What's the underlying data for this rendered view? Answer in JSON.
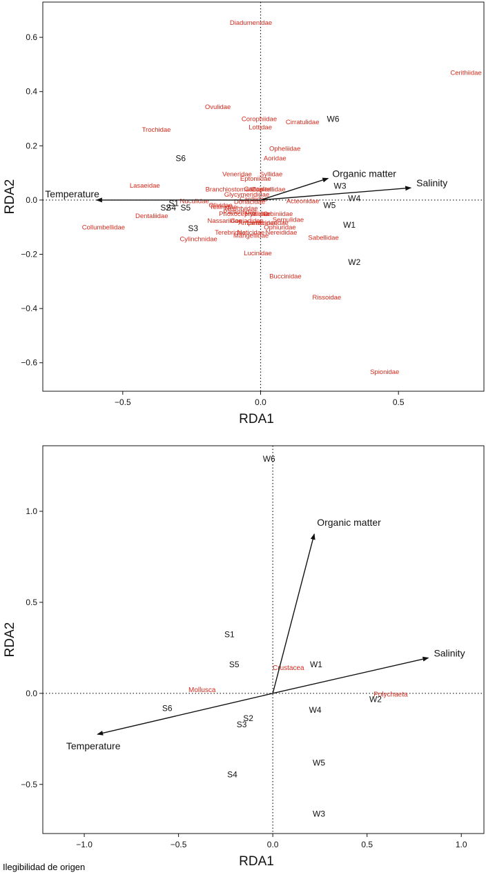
{
  "footer_text": "Ilegibilidad de origen",
  "colors": {
    "site": "#111111",
    "taxon": "#d42a1c",
    "axis": "#111111",
    "arrow": "#111111"
  },
  "chart_data": [
    {
      "type": "scatter",
      "title": "",
      "xlabel": "RDA1",
      "ylabel": "RDA2",
      "xlim": [
        -0.79,
        0.81
      ],
      "ylim": [
        -0.705,
        0.73
      ],
      "xticks": [
        -0.5,
        0.0,
        0.5
      ],
      "xtick_labels": [
        "−0.5",
        "0.0",
        "0.5"
      ],
      "yticks": [
        -0.6,
        -0.4,
        -0.2,
        0.0,
        0.2,
        0.4,
        0.6
      ],
      "ytick_labels": [
        "−0.6",
        "−0.4",
        "−0.2",
        "0.0",
        "0.2",
        "0.4",
        "0.6"
      ],
      "arrows": [
        {
          "label": "Temperature",
          "x": -0.595,
          "y": 0.0
        },
        {
          "label": "Organic matter",
          "x": 0.245,
          "y": 0.08
        },
        {
          "label": "Salinity",
          "x": 0.545,
          "y": 0.045
        }
      ],
      "sites": [
        {
          "label": "S6",
          "x": -0.29,
          "y": 0.155
        },
        {
          "label": "S1",
          "x": -0.315,
          "y": -0.01
        },
        {
          "label": "S2",
          "x": -0.345,
          "y": -0.027
        },
        {
          "label": "S4",
          "x": -0.325,
          "y": -0.027
        },
        {
          "label": "S5",
          "x": -0.272,
          "y": -0.027
        },
        {
          "label": "S3",
          "x": -0.245,
          "y": -0.103
        },
        {
          "label": "W6",
          "x": 0.263,
          "y": 0.3
        },
        {
          "label": "W3",
          "x": 0.288,
          "y": 0.053
        },
        {
          "label": "W4",
          "x": 0.34,
          "y": 0.008
        },
        {
          "label": "W5",
          "x": 0.25,
          "y": -0.018
        },
        {
          "label": "W1",
          "x": 0.322,
          "y": -0.09
        },
        {
          "label": "W2",
          "x": 0.34,
          "y": -0.228
        }
      ],
      "taxa": [
        {
          "label": "Diadumenidae",
          "x": -0.035,
          "y": 0.655
        },
        {
          "label": "Cerithiidae",
          "x": 0.745,
          "y": 0.47
        },
        {
          "label": "Ovulidae",
          "x": -0.155,
          "y": 0.345
        },
        {
          "label": "Corophiidae",
          "x": -0.005,
          "y": 0.3
        },
        {
          "label": "Cirratulidae",
          "x": 0.152,
          "y": 0.288
        },
        {
          "label": "Lottidae",
          "x": -0.001,
          "y": 0.27
        },
        {
          "label": "Trochidae",
          "x": -0.378,
          "y": 0.26
        },
        {
          "label": "Opheliidae",
          "x": 0.088,
          "y": 0.19
        },
        {
          "label": "Aoridae",
          "x": 0.052,
          "y": 0.155
        },
        {
          "label": "Veneridae",
          "x": -0.085,
          "y": 0.097
        },
        {
          "label": "Syllidae",
          "x": 0.038,
          "y": 0.097
        },
        {
          "label": "Eptoniidae",
          "x": -0.018,
          "y": 0.08
        },
        {
          "label": "Lasaeidae",
          "x": -0.42,
          "y": 0.055
        },
        {
          "label": "Branchiostomatidae",
          "x": -0.095,
          "y": 0.04
        },
        {
          "label": "Caecidae",
          "x": -0.01,
          "y": 0.042
        },
        {
          "label": "Capitellidae",
          "x": 0.028,
          "y": 0.04
        },
        {
          "label": "Glycymerididae",
          "x": -0.05,
          "y": 0.022
        },
        {
          "label": "Cardiidae",
          "x": -0.025,
          "y": 0.005
        },
        {
          "label": "Donacidae",
          "x": -0.04,
          "y": -0.005
        },
        {
          "label": "Acteonidae",
          "x": 0.153,
          "y": -0.003
        },
        {
          "label": "Nuculidae",
          "x": -0.24,
          "y": -0.003
        },
        {
          "label": "Olividae",
          "x": -0.145,
          "y": -0.018
        },
        {
          "label": "Tellinidae",
          "x": -0.135,
          "y": -0.025
        },
        {
          "label": "Nephtyidae",
          "x": -0.07,
          "y": -0.03
        },
        {
          "label": "Dentaliidae",
          "x": -0.395,
          "y": -0.058
        },
        {
          "label": "Paraonidae",
          "x": -0.075,
          "y": -0.042
        },
        {
          "label": "Phoxocephalidae",
          "x": -0.06,
          "y": -0.05
        },
        {
          "label": "Hyalidae",
          "x": -0.01,
          "y": -0.05
        },
        {
          "label": "Orbiniidae",
          "x": 0.063,
          "y": -0.05
        },
        {
          "label": "Serpulidae",
          "x": 0.1,
          "y": -0.072
        },
        {
          "label": "Nassariidae",
          "x": -0.13,
          "y": -0.075
        },
        {
          "label": "Goniadidae",
          "x": -0.05,
          "y": -0.075
        },
        {
          "label": "Ampeliscidae",
          "x": -0.01,
          "y": -0.083
        },
        {
          "label": "Lumbrineridae",
          "x": 0.025,
          "y": -0.083
        },
        {
          "label": "Collumbellidae",
          "x": -0.57,
          "y": -0.1
        },
        {
          "label": "Ophiuridae",
          "x": 0.07,
          "y": -0.1
        },
        {
          "label": "Terebridae",
          "x": -0.11,
          "y": -0.118
        },
        {
          "label": "Naticidae",
          "x": -0.035,
          "y": -0.118
        },
        {
          "label": "Nereididae",
          "x": 0.075,
          "y": -0.118
        },
        {
          "label": "Mangeliidae",
          "x": -0.035,
          "y": -0.13
        },
        {
          "label": "Sabellidae",
          "x": 0.228,
          "y": -0.138
        },
        {
          "label": "Cylinchnidae",
          "x": -0.225,
          "y": -0.143
        },
        {
          "label": "Lucinidae",
          "x": -0.01,
          "y": -0.195
        },
        {
          "label": "Buccinidae",
          "x": 0.09,
          "y": -0.28
        },
        {
          "label": "Rissoidae",
          "x": 0.24,
          "y": -0.358
        },
        {
          "label": "Spionidae",
          "x": 0.45,
          "y": -0.632
        }
      ]
    },
    {
      "type": "scatter",
      "title": "",
      "xlabel": "RDA1",
      "ylabel": "RDA2",
      "xlim": [
        -1.22,
        1.12
      ],
      "ylim": [
        -0.77,
        1.36
      ],
      "xticks": [
        -1.0,
        -0.5,
        0.0,
        0.5,
        1.0
      ],
      "xtick_labels": [
        "−1.0",
        "−0.5",
        "0.0",
        "0.5",
        "1.0"
      ],
      "yticks": [
        -0.5,
        0.0,
        0.5,
        1.0
      ],
      "ytick_labels": [
        "−0.5",
        "0.0",
        "0.5",
        "1.0"
      ],
      "arrows": [
        {
          "label": "Temperature",
          "x": -0.93,
          "y": -0.225
        },
        {
          "label": "Organic matter",
          "x": 0.22,
          "y": 0.875
        },
        {
          "label": "Salinity",
          "x": 0.825,
          "y": 0.195
        }
      ],
      "sites": [
        {
          "label": "W6",
          "x": -0.02,
          "y": 1.29
        },
        {
          "label": "S1",
          "x": -0.23,
          "y": 0.325
        },
        {
          "label": "S5",
          "x": -0.205,
          "y": 0.16
        },
        {
          "label": "W1",
          "x": 0.23,
          "y": 0.16
        },
        {
          "label": "S6",
          "x": -0.56,
          "y": -0.08
        },
        {
          "label": "W2",
          "x": 0.545,
          "y": -0.03
        },
        {
          "label": "W4",
          "x": 0.225,
          "y": -0.09
        },
        {
          "label": "S2",
          "x": -0.13,
          "y": -0.135
        },
        {
          "label": "S3",
          "x": -0.165,
          "y": -0.17
        },
        {
          "label": "W5",
          "x": 0.245,
          "y": -0.38
        },
        {
          "label": "S4",
          "x": -0.215,
          "y": -0.445
        },
        {
          "label": "W3",
          "x": 0.245,
          "y": -0.66
        }
      ],
      "taxa": [
        {
          "label": "Crustacea",
          "x": 0.083,
          "y": 0.142
        },
        {
          "label": "Mollusca",
          "x": -0.375,
          "y": 0.02
        },
        {
          "label": "Polychaeta",
          "x": 0.625,
          "y": -0.005
        }
      ]
    }
  ]
}
